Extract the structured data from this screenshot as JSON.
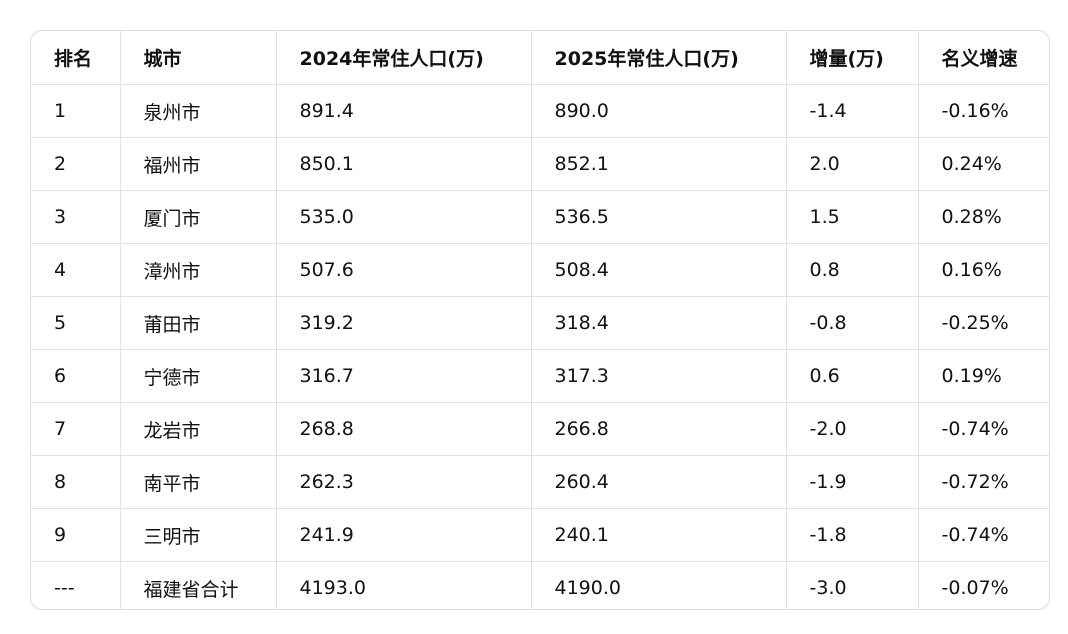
{
  "table": {
    "header": [
      "排名",
      "城市",
      "2024年常住人口(万)",
      "2025年常住人口(万)",
      "增量(万)",
      "名义增速"
    ],
    "rows": [
      [
        "1",
        "泉州市",
        "891.4",
        "890.0",
        "-1.4",
        "-0.16%"
      ],
      [
        "2",
        "福州市",
        "850.1",
        "852.1",
        "2.0",
        "0.24%"
      ],
      [
        "3",
        "厦门市",
        "535.0",
        "536.5",
        "1.5",
        "0.28%"
      ],
      [
        "4",
        "漳州市",
        "507.6",
        "508.4",
        "0.8",
        "0.16%"
      ],
      [
        "5",
        "莆田市",
        "319.2",
        "318.4",
        "-0.8",
        "-0.25%"
      ],
      [
        "6",
        "宁德市",
        "316.7",
        "317.3",
        "0.6",
        "0.19%"
      ],
      [
        "7",
        "龙岩市",
        "268.8",
        "266.8",
        "-2.0",
        "-0.74%"
      ],
      [
        "8",
        "南平市",
        "262.3",
        "260.4",
        "-1.9",
        "-0.72%"
      ],
      [
        "9",
        "三明市",
        "241.9",
        "240.1",
        "-1.8",
        "-0.74%"
      ],
      [
        "---",
        "福建省合计",
        "4193.0",
        "4190.0",
        "-3.0",
        "-0.07%"
      ]
    ]
  }
}
